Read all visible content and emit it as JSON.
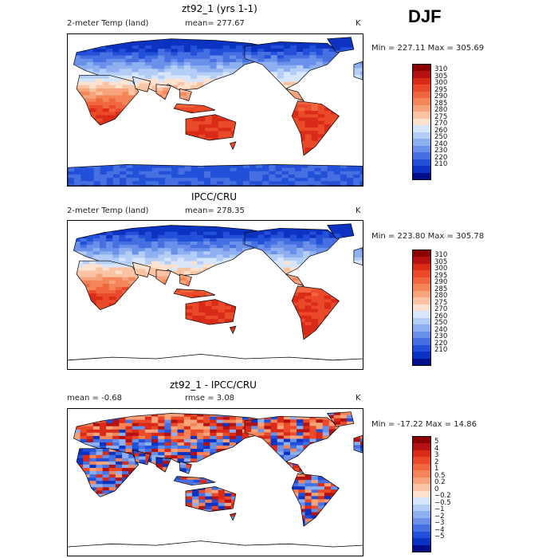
{
  "season": "DJF",
  "panels": [
    {
      "title": "zt92_1 (yrs 1-1)",
      "left_label": "2-meter Temp (land)",
      "stat_label": "mean= 277.67",
      "stat2_label": "",
      "units": "K",
      "minmax": "Min = 227.11 Max = 305.69",
      "field": "model",
      "colorbar_labels": [
        "310",
        "305",
        "300",
        "295",
        "290",
        "285",
        "280",
        "275",
        "270",
        "260",
        "250",
        "240",
        "230",
        "220",
        "210"
      ],
      "colors": [
        "#8b0000",
        "#b41212",
        "#d92b18",
        "#ea4a2a",
        "#f0663e",
        "#f48559",
        "#f7a47c",
        "#fac3a4",
        "#fde2d0",
        "#d7e6fa",
        "#b4cdf6",
        "#8eb0f0",
        "#6a90ea",
        "#4670e2",
        "#2250d9",
        "#0c32c2",
        "#000e8a"
      ]
    },
    {
      "title": "IPCC/CRU",
      "left_label": "2-meter Temp (land)",
      "stat_label": "mean= 278.35",
      "stat2_label": "",
      "units": "K",
      "minmax": "Min = 223.80 Max = 305.78",
      "field": "obs",
      "colorbar_labels": [
        "310",
        "305",
        "300",
        "295",
        "290",
        "285",
        "280",
        "275",
        "270",
        "260",
        "250",
        "240",
        "230",
        "220",
        "210"
      ],
      "colors": [
        "#8b0000",
        "#b41212",
        "#d92b18",
        "#ea4a2a",
        "#f0663e",
        "#f48559",
        "#f7a47c",
        "#fac3a4",
        "#fde2d0",
        "#d7e6fa",
        "#b4cdf6",
        "#8eb0f0",
        "#6a90ea",
        "#4670e2",
        "#2250d9",
        "#0c32c2",
        "#000e8a"
      ]
    },
    {
      "title": "zt92_1 - IPCC/CRU",
      "left_label": "mean =   -0.68",
      "stat_label": "rmse =    3.08",
      "stat2_label": "",
      "units": "K",
      "minmax": "Min = -17.22 Max =  14.86",
      "field": "diff",
      "colorbar_labels": [
        "5",
        "4",
        "3",
        "2",
        "1",
        "0.5",
        "0.2",
        "0",
        "−0.2",
        "−0.5",
        "−1",
        "−2",
        "−3",
        "−4",
        "−5"
      ],
      "colors": [
        "#8b0000",
        "#b41212",
        "#d92b18",
        "#ea4a2a",
        "#f0663e",
        "#f48559",
        "#f7a47c",
        "#fac3a4",
        "#fde2d0",
        "#d7e6fa",
        "#b4cdf6",
        "#8eb0f0",
        "#6a90ea",
        "#4670e2",
        "#2250d9",
        "#0c32c2",
        "#000e8a"
      ]
    }
  ]
}
